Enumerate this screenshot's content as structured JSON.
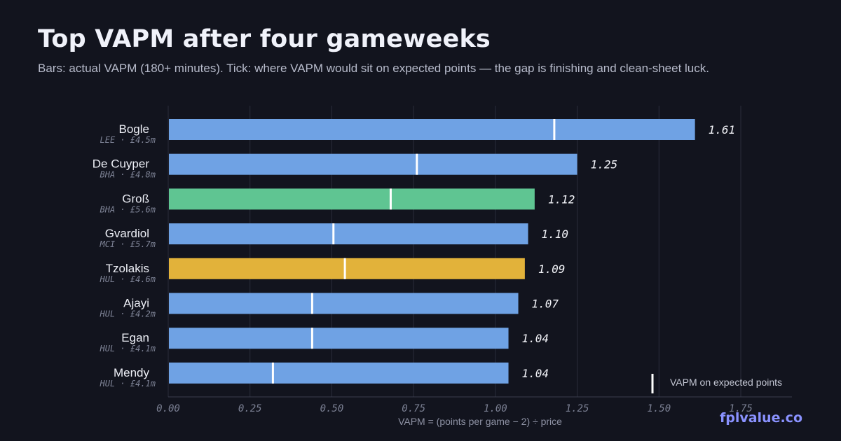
{
  "header": {
    "title": "Top VAPM after four gameweeks",
    "subtitle": "Bars: actual VAPM (180+ minutes). Tick: where VAPM would sit on expected points — the gap is finishing and clean-sheet luck."
  },
  "brand": "fplvalue.co",
  "legend": {
    "label": "VAPM on expected points"
  },
  "colors": {
    "background": "#12141e",
    "bar_default": "#6fa2e4",
    "bar_green": "#5fc592",
    "bar_gold": "#e2b23a",
    "tick": "#ffffff",
    "grid": "#2a2d3b",
    "brand": "#8a92ff"
  },
  "chart_data": {
    "type": "bar",
    "orientation": "horizontal",
    "xlabel": "VAPM = (points per game − 2) ÷ price",
    "xlim": [
      0,
      1.75
    ],
    "xticks": [
      "0.00",
      "0.25",
      "0.50",
      "0.75",
      "1.00",
      "1.25",
      "1.50",
      "1.75"
    ],
    "xtick_values": [
      0,
      0.25,
      0.5,
      0.75,
      1.0,
      1.25,
      1.5,
      1.75
    ],
    "grid": true,
    "legend_position": "bottom-right",
    "rows": [
      {
        "name": "Bogle",
        "meta": "LEE · £4.5m",
        "value": 1.61,
        "value_label": "1.61",
        "expected": 1.18,
        "color": "#6fa2e4"
      },
      {
        "name": "De Cuyper",
        "meta": "BHA · £4.8m",
        "value": 1.25,
        "value_label": "1.25",
        "expected": 0.76,
        "color": "#6fa2e4"
      },
      {
        "name": "Groß",
        "meta": "BHA · £5.6m",
        "value": 1.12,
        "value_label": "1.12",
        "expected": 0.68,
        "color": "#5fc592"
      },
      {
        "name": "Gvardiol",
        "meta": "MCI · £5.7m",
        "value": 1.1,
        "value_label": "1.10",
        "expected": 0.505,
        "color": "#6fa2e4"
      },
      {
        "name": "Tzolakis",
        "meta": "HUL · £4.6m",
        "value": 1.09,
        "value_label": "1.09",
        "expected": 0.54,
        "color": "#e2b23a"
      },
      {
        "name": "Ajayi",
        "meta": "HUL · £4.2m",
        "value": 1.07,
        "value_label": "1.07",
        "expected": 0.44,
        "color": "#6fa2e4"
      },
      {
        "name": "Egan",
        "meta": "HUL · £4.1m",
        "value": 1.04,
        "value_label": "1.04",
        "expected": 0.44,
        "color": "#6fa2e4"
      },
      {
        "name": "Mendy",
        "meta": "HUL · £4.1m",
        "value": 1.04,
        "value_label": "1.04",
        "expected": 0.32,
        "color": "#6fa2e4"
      }
    ]
  }
}
